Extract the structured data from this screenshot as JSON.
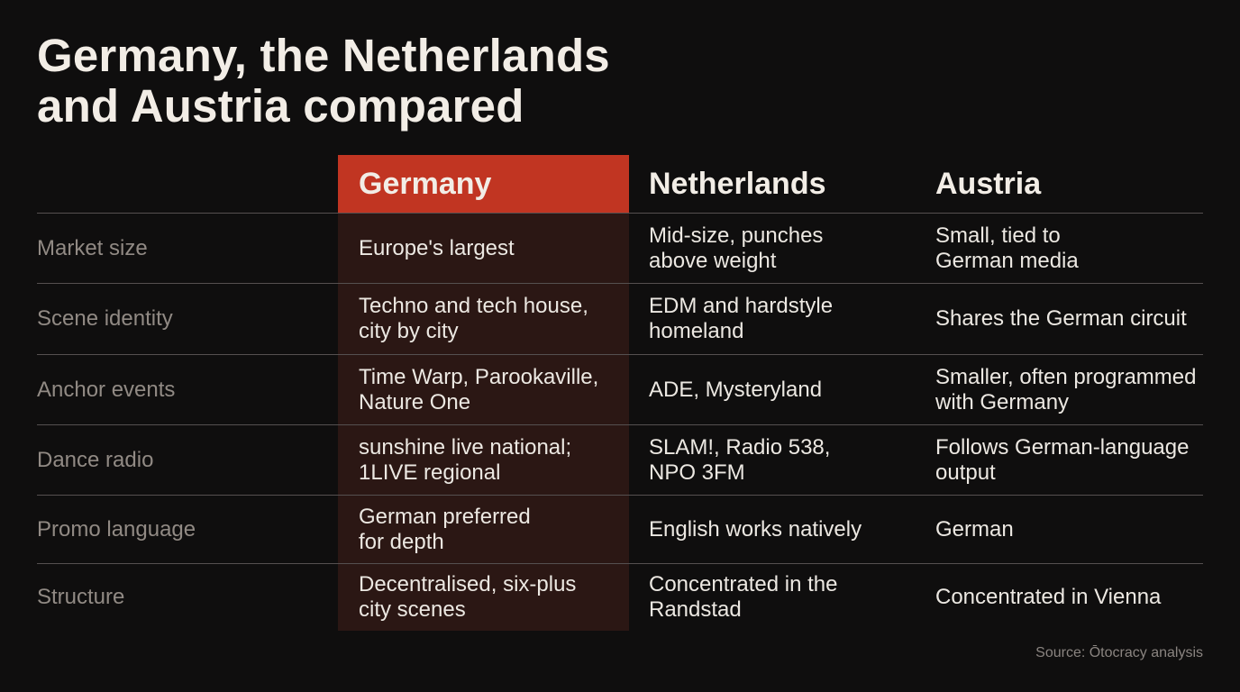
{
  "title": {
    "line1": "Germany, the Netherlands",
    "line2": "and Austria compared"
  },
  "columns": [
    "Germany",
    "Netherlands",
    "Austria"
  ],
  "accent_color": "#c13522",
  "rows": [
    {
      "label": "Market size",
      "cells": [
        "Europe's largest",
        "Mid-size, punches\nabove weight",
        "Small, tied to\nGerman media"
      ]
    },
    {
      "label": "Scene identity",
      "cells": [
        "Techno and tech house,\ncity by city",
        "EDM and hardstyle\nhomeland",
        "Shares the German circuit"
      ]
    },
    {
      "label": "Anchor events",
      "cells": [
        "Time Warp, Parookaville,\nNature One",
        "ADE, Mysteryland",
        "Smaller, often programmed\nwith Germany"
      ]
    },
    {
      "label": "Dance radio",
      "cells": [
        "sunshine live national;\n1LIVE regional",
        "SLAM!, Radio 538,\nNPO 3FM",
        "Follows German-language\noutput"
      ]
    },
    {
      "label": "Promo language",
      "cells": [
        "German preferred\nfor depth",
        "English works natively",
        "German"
      ]
    },
    {
      "label": "Structure",
      "cells": [
        "Decentralised, six-plus\ncity scenes",
        "Concentrated in the\nRandstad",
        "Concentrated in Vienna"
      ]
    }
  ],
  "source": "Source: Ōtocracy analysis"
}
